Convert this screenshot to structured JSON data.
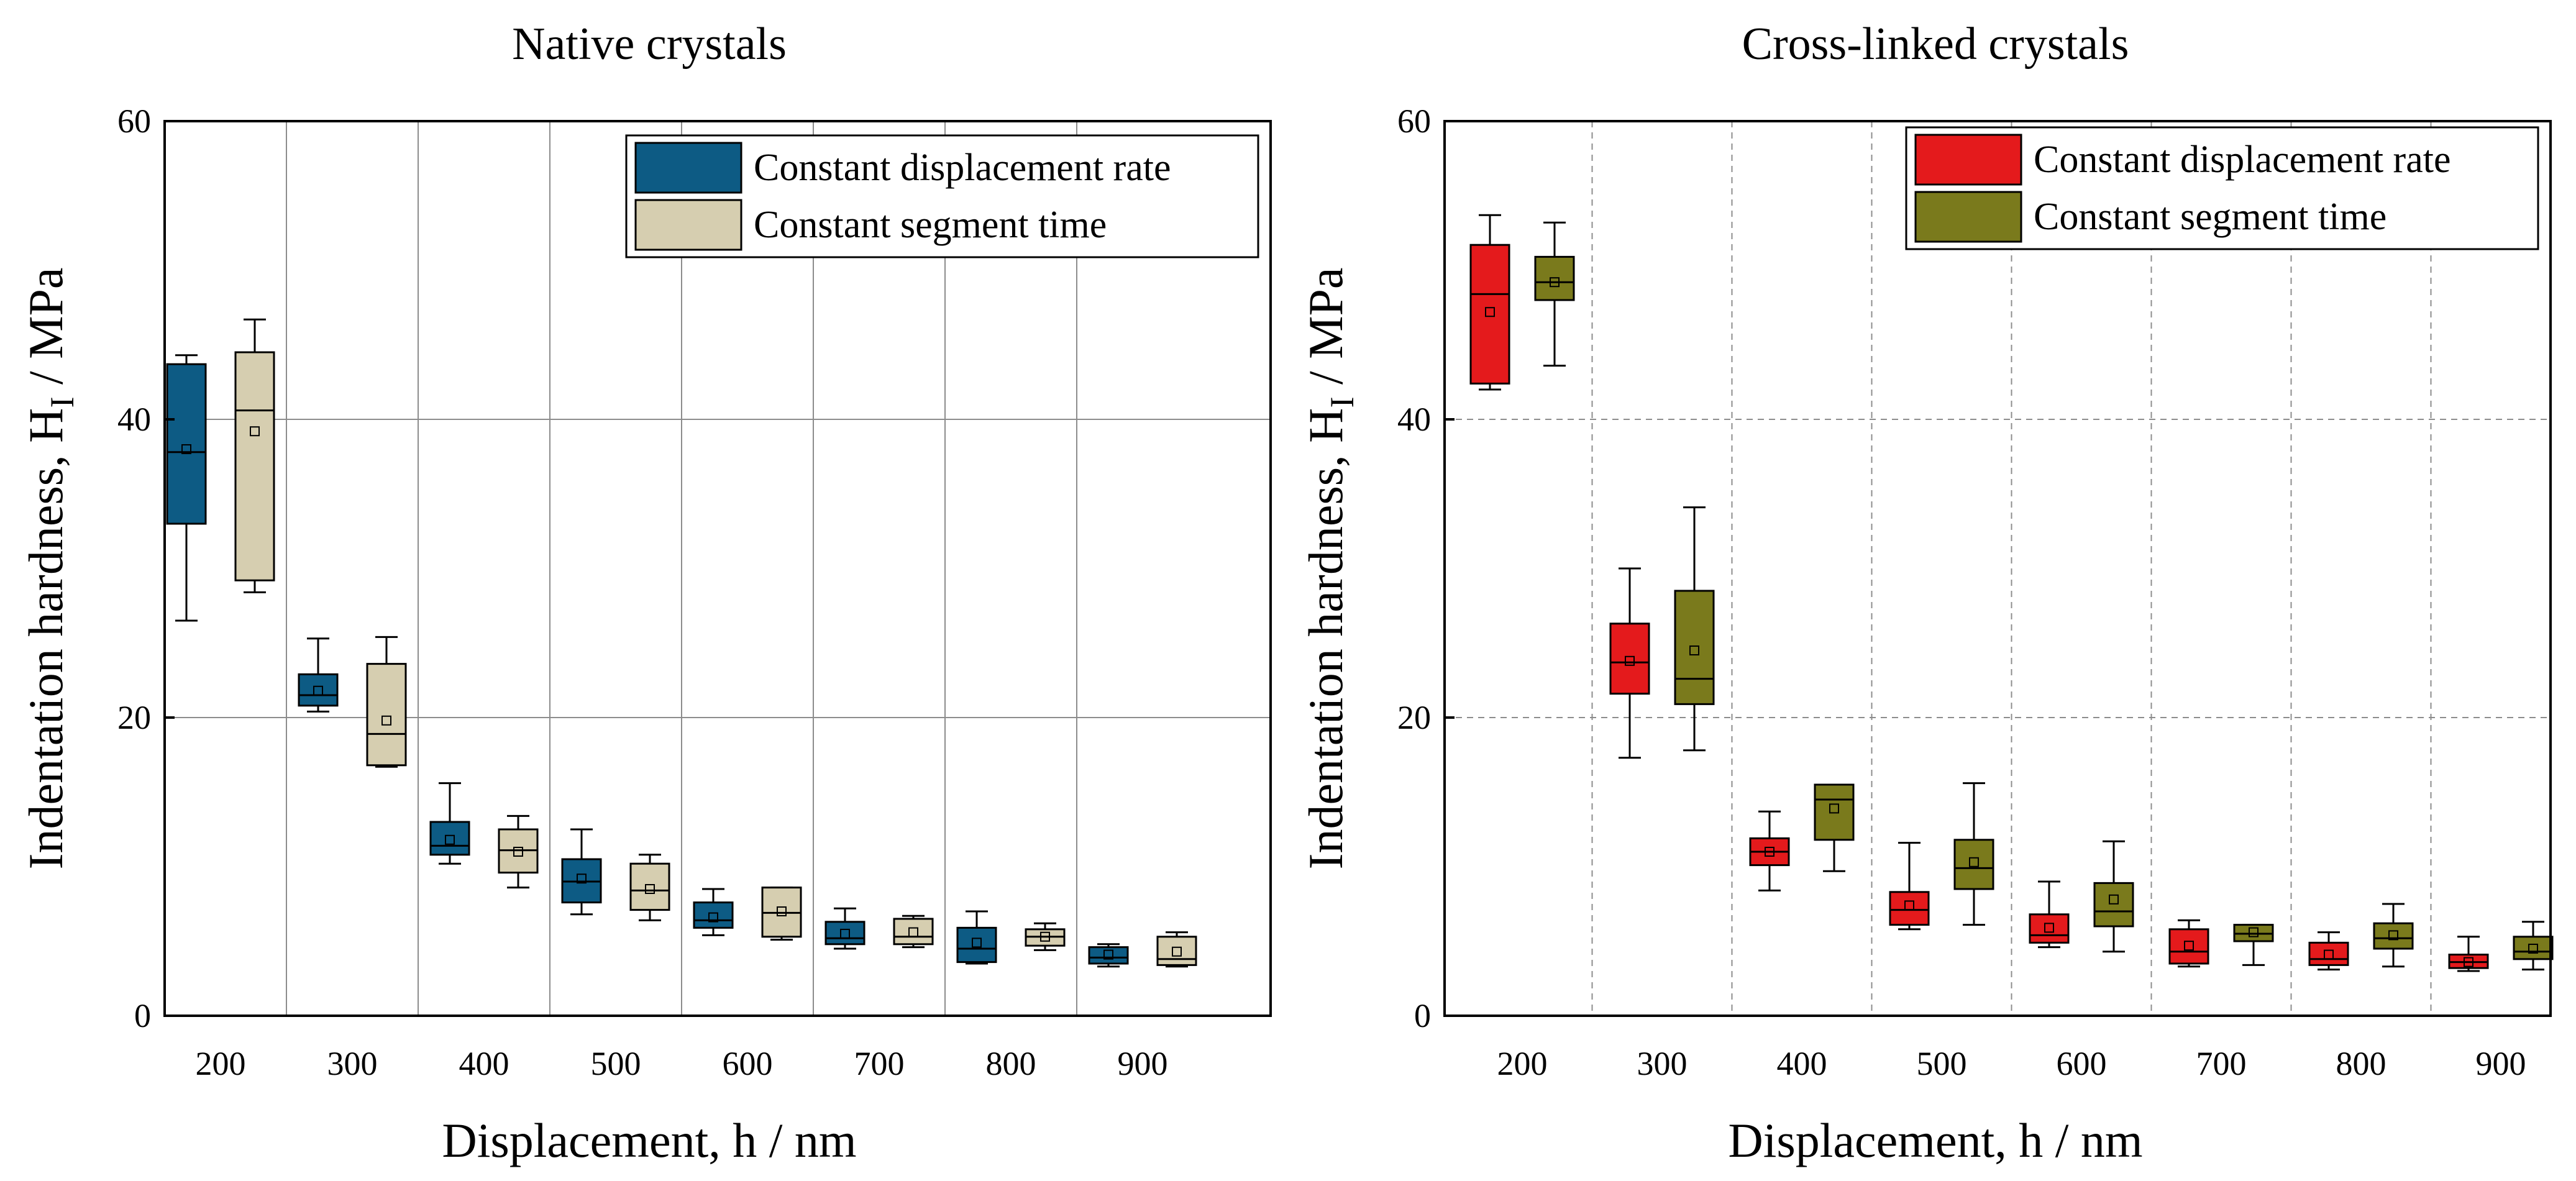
{
  "chart_data": [
    {
      "type": "boxplot",
      "title": "Native crystals",
      "xlabel": "Displacement, h / nm",
      "ylabel": "Indentation hardness, H",
      "ylabel_sub": "I",
      "ylabel_unit": " / MPa",
      "ylim": [
        0,
        60
      ],
      "yticks": [
        0,
        20,
        40,
        60
      ],
      "categories": [
        "200",
        "300",
        "400",
        "500",
        "600",
        "700",
        "800",
        "900"
      ],
      "legend_position": "top-right",
      "grid": "solid gray vertical dividers between categories and horizontal lines at 20 and 40",
      "series": [
        {
          "name": "Constant displacement rate",
          "color": "#0d5b84",
          "boxes": [
            {
              "min": 26.5,
              "q1": 33.0,
              "median": 37.8,
              "mean": 38.0,
              "q3": 43.7,
              "max": 44.3
            },
            {
              "min": 20.4,
              "q1": 20.8,
              "median": 21.5,
              "mean": 21.8,
              "q3": 22.9,
              "max": 25.3
            },
            {
              "min": 10.2,
              "q1": 10.8,
              "median": 11.4,
              "mean": 11.8,
              "q3": 13.0,
              "max": 15.6
            },
            {
              "min": 6.8,
              "q1": 7.6,
              "median": 9.0,
              "mean": 9.2,
              "q3": 10.5,
              "max": 12.5
            },
            {
              "min": 5.4,
              "q1": 5.9,
              "median": 6.4,
              "mean": 6.6,
              "q3": 7.6,
              "max": 8.5
            },
            {
              "min": 4.5,
              "q1": 4.8,
              "median": 5.2,
              "mean": 5.5,
              "q3": 6.3,
              "max": 7.2
            },
            {
              "min": 3.5,
              "q1": 3.6,
              "median": 4.5,
              "mean": 4.9,
              "q3": 5.9,
              "max": 7.0
            },
            {
              "min": 3.3,
              "q1": 3.5,
              "median": 3.9,
              "mean": 4.1,
              "q3": 4.6,
              "max": 4.8
            }
          ]
        },
        {
          "name": "Constant segment time",
          "color": "#d6ceb0",
          "boxes": [
            {
              "min": 28.4,
              "q1": 29.2,
              "median": 40.6,
              "mean": 39.2,
              "q3": 44.5,
              "max": 46.7
            },
            {
              "min": 16.7,
              "q1": 16.8,
              "median": 18.9,
              "mean": 19.8,
              "q3": 23.6,
              "max": 25.4
            },
            {
              "min": 8.6,
              "q1": 9.6,
              "median": 11.1,
              "mean": 11.0,
              "q3": 12.5,
              "max": 13.4
            },
            {
              "min": 6.4,
              "q1": 7.1,
              "median": 8.4,
              "mean": 8.5,
              "q3": 10.2,
              "max": 10.8
            },
            {
              "min": 5.1,
              "q1": 5.3,
              "median": 6.9,
              "mean": 7.0,
              "q3": 8.6,
              "max": 8.6
            },
            {
              "min": 4.6,
              "q1": 4.8,
              "median": 5.3,
              "mean": 5.6,
              "q3": 6.5,
              "max": 6.7
            },
            {
              "min": 4.4,
              "q1": 4.7,
              "median": 5.3,
              "mean": 5.3,
              "q3": 5.8,
              "max": 6.2
            },
            {
              "min": 3.3,
              "q1": 3.4,
              "median": 3.8,
              "mean": 4.3,
              "q3": 5.3,
              "max": 5.6
            }
          ]
        }
      ]
    },
    {
      "type": "boxplot",
      "title": "Cross-linked crystals",
      "xlabel": "Displacement, h / nm",
      "ylabel": "Indentation hardness, H",
      "ylabel_sub": "I",
      "ylabel_unit": " / MPa",
      "ylim": [
        0,
        60
      ],
      "yticks": [
        0,
        20,
        40,
        60
      ],
      "categories": [
        "200",
        "300",
        "400",
        "500",
        "600",
        "700",
        "800",
        "900"
      ],
      "legend_position": "top-right",
      "grid": "dashed gray vertical dividers between categories and horizontal lines at 20 and 40",
      "series": [
        {
          "name": "Constant displacement rate",
          "color": "#e41a1c",
          "boxes": [
            {
              "min": 42.0,
              "q1": 42.4,
              "median": 48.4,
              "mean": 47.2,
              "q3": 51.7,
              "max": 53.7
            },
            {
              "min": 17.3,
              "q1": 21.6,
              "median": 23.7,
              "mean": 23.8,
              "q3": 26.3,
              "max": 30.0
            },
            {
              "min": 8.4,
              "q1": 10.1,
              "median": 11.0,
              "mean": 11.0,
              "q3": 11.9,
              "max": 13.7
            },
            {
              "min": 5.8,
              "q1": 6.1,
              "median": 7.1,
              "mean": 7.4,
              "q3": 8.3,
              "max": 11.6
            },
            {
              "min": 4.6,
              "q1": 4.9,
              "median": 5.4,
              "mean": 5.9,
              "q3": 6.8,
              "max": 9.0
            },
            {
              "min": 3.3,
              "q1": 3.5,
              "median": 4.3,
              "mean": 4.7,
              "q3": 5.8,
              "max": 6.4
            },
            {
              "min": 3.1,
              "q1": 3.4,
              "median": 3.8,
              "mean": 4.1,
              "q3": 4.9,
              "max": 5.6
            },
            {
              "min": 3.0,
              "q1": 3.2,
              "median": 3.6,
              "mean": 3.6,
              "q3": 4.1,
              "max": 5.3
            }
          ]
        },
        {
          "name": "Constant segment time",
          "color": "#7a7a1c",
          "boxes": [
            {
              "min": 43.6,
              "q1": 48.0,
              "median": 49.2,
              "mean": 49.2,
              "q3": 50.9,
              "max": 53.2
            },
            {
              "min": 17.8,
              "q1": 20.9,
              "median": 22.6,
              "mean": 24.5,
              "q3": 28.5,
              "max": 34.1
            },
            {
              "min": 9.7,
              "q1": 11.8,
              "median": 14.5,
              "mean": 13.9,
              "q3": 15.5,
              "max": 15.5
            },
            {
              "min": 6.1,
              "q1": 8.5,
              "median": 9.9,
              "mean": 10.3,
              "q3": 11.8,
              "max": 15.6
            },
            {
              "min": 4.3,
              "q1": 6.0,
              "median": 7.0,
              "mean": 7.8,
              "q3": 8.9,
              "max": 11.7
            },
            {
              "min": 3.4,
              "q1": 5.0,
              "median": 5.5,
              "mean": 5.6,
              "q3": 6.1,
              "max": 6.1
            },
            {
              "min": 3.3,
              "q1": 4.5,
              "median": 5.2,
              "mean": 5.4,
              "q3": 6.2,
              "max": 7.5
            },
            {
              "min": 3.1,
              "q1": 3.8,
              "median": 4.3,
              "mean": 4.5,
              "q3": 5.3,
              "max": 6.3
            }
          ]
        }
      ]
    }
  ]
}
